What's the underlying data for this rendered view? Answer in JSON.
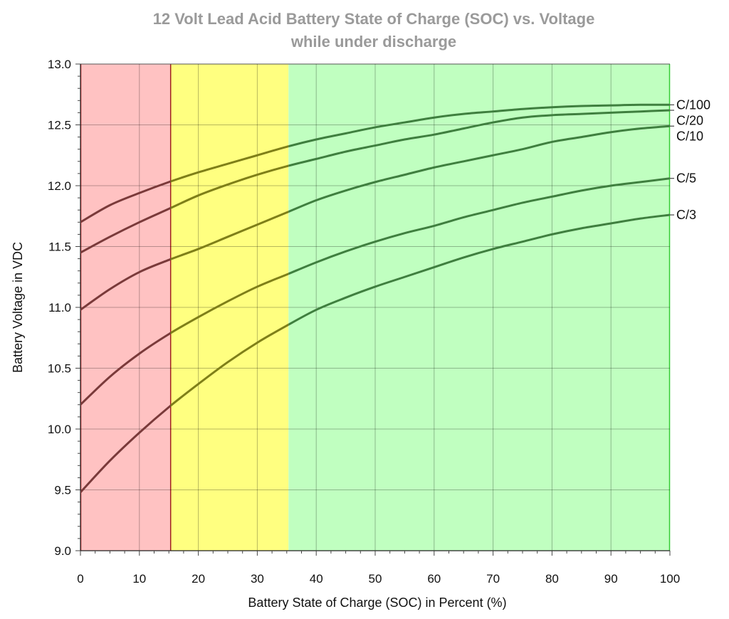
{
  "chart_data": {
    "type": "line",
    "title": "12 Volt Lead Acid Battery State of Charge (SOC) vs. Voltage",
    "subtitle": "while under discharge",
    "xlabel": "Battery State of Charge (SOC) in Percent (%)",
    "ylabel": "Battery Voltage in VDC",
    "xlim": [
      0,
      100
    ],
    "ylim": [
      9.0,
      13.0
    ],
    "x_ticks": [
      "0",
      "10",
      "20",
      "30",
      "40",
      "50",
      "60",
      "70",
      "80",
      "90",
      "100"
    ],
    "y_ticks": [
      "9.0",
      "9.5",
      "10.0",
      "10.5",
      "11.0",
      "11.5",
      "12.0",
      "12.5",
      "13.0"
    ],
    "grid": true,
    "zones": [
      {
        "from": 0,
        "to": 15.3,
        "color": "#ffc2c2",
        "line_color": "#7a3a3a"
      },
      {
        "from": 15.3,
        "to": 35.3,
        "color": "#ffff80",
        "line_color": "#7f7f18"
      },
      {
        "from": 35.3,
        "to": 100,
        "color": "#c0ffc0",
        "line_color": "#3f7f3f"
      }
    ],
    "series": [
      {
        "name": "C/100",
        "x": [
          0,
          5,
          10,
          15,
          20,
          25,
          30,
          35,
          40,
          45,
          50,
          55,
          60,
          65,
          70,
          75,
          80,
          85,
          90,
          95,
          100
        ],
        "values": [
          11.7,
          11.84,
          11.94,
          12.03,
          12.11,
          12.18,
          12.25,
          12.32,
          12.38,
          12.43,
          12.48,
          12.52,
          12.56,
          12.59,
          12.61,
          12.63,
          12.645,
          12.655,
          12.66,
          12.665,
          12.665
        ]
      },
      {
        "name": "C/20",
        "x": [
          0,
          5,
          10,
          15,
          20,
          25,
          30,
          35,
          40,
          45,
          50,
          55,
          60,
          65,
          70,
          75,
          80,
          85,
          90,
          95,
          100
        ],
        "values": [
          11.45,
          11.58,
          11.7,
          11.81,
          11.92,
          12.01,
          12.09,
          12.16,
          12.22,
          12.28,
          12.33,
          12.38,
          12.42,
          12.47,
          12.52,
          12.56,
          12.58,
          12.59,
          12.6,
          12.61,
          12.62
        ]
      },
      {
        "name": "C/10",
        "x": [
          0,
          5,
          10,
          15,
          20,
          25,
          30,
          35,
          40,
          45,
          50,
          55,
          60,
          65,
          70,
          75,
          80,
          85,
          90,
          95,
          100
        ],
        "values": [
          10.98,
          11.15,
          11.29,
          11.39,
          11.48,
          11.58,
          11.68,
          11.78,
          11.88,
          11.96,
          12.03,
          12.09,
          12.15,
          12.2,
          12.25,
          12.3,
          12.36,
          12.4,
          12.44,
          12.47,
          12.49
        ]
      },
      {
        "name": "C/5",
        "x": [
          0,
          5,
          10,
          15,
          20,
          25,
          30,
          35,
          40,
          45,
          50,
          55,
          60,
          65,
          70,
          75,
          80,
          85,
          90,
          95,
          100
        ],
        "values": [
          10.2,
          10.43,
          10.62,
          10.78,
          10.92,
          11.05,
          11.17,
          11.27,
          11.37,
          11.46,
          11.54,
          11.61,
          11.67,
          11.74,
          11.8,
          11.86,
          11.91,
          11.96,
          12.0,
          12.03,
          12.06
        ]
      },
      {
        "name": "C/3",
        "x": [
          0,
          5,
          10,
          15,
          20,
          25,
          30,
          35,
          40,
          45,
          50,
          55,
          60,
          65,
          70,
          75,
          80,
          85,
          90,
          95,
          100
        ],
        "values": [
          9.48,
          9.74,
          9.97,
          10.18,
          10.37,
          10.55,
          10.71,
          10.85,
          10.98,
          11.08,
          11.17,
          11.25,
          11.33,
          11.41,
          11.48,
          11.54,
          11.6,
          11.65,
          11.69,
          11.73,
          11.76
        ]
      }
    ]
  }
}
